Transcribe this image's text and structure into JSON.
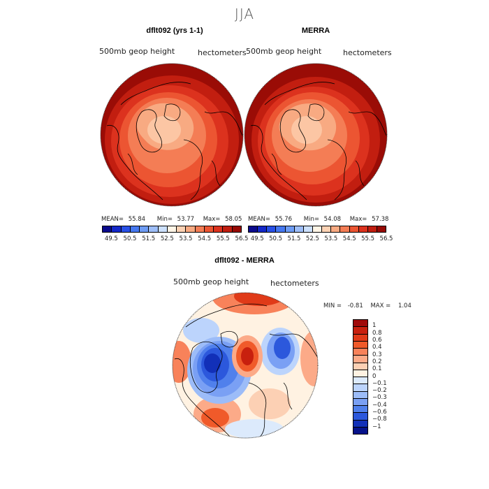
{
  "title": "JJA",
  "panels": [
    {
      "title": "dflt092 (yrs 1-1)",
      "var_label": "500mb geop height",
      "unit_label": "hectometers",
      "mean_label": "MEAN=",
      "mean": "55.84",
      "min_label": "Min=",
      "min": "53.77",
      "max_label": "Max=",
      "max": "58.05"
    },
    {
      "title": "MERRA",
      "var_label": "500mb geop height",
      "unit_label": "hectometers",
      "mean_label": "MEAN=",
      "mean": "55.76",
      "min_label": "Min=",
      "min": "54.08",
      "max_label": "Max=",
      "max": "57.38"
    }
  ],
  "abs_colorbar": {
    "colors": [
      "#0a0a8c",
      "#1428c8",
      "#2850e6",
      "#4678f0",
      "#6e9cf4",
      "#9ebef8",
      "#cce0fc",
      "#fff5e6",
      "#fcd2b4",
      "#f8aa82",
      "#f47d55",
      "#ec5532",
      "#dc321e",
      "#c01e10",
      "#960a05"
    ],
    "tick_labels": [
      "49.5",
      "50.5",
      "51.5",
      "52.5",
      "53.5",
      "54.5",
      "55.5",
      "56.5"
    ]
  },
  "diff_panel": {
    "title": "dflt092 - MERRA",
    "var_label": "500mb geop height",
    "unit_label": "hectometers",
    "min_label": "MIN =",
    "min": "-0.81",
    "max_label": "MAX =",
    "max": "1.04"
  },
  "diff_colorbar": {
    "colors_top_to_bottom": [
      "#a00a0a",
      "#c8200e",
      "#e03a18",
      "#f05a2a",
      "#f8825a",
      "#fcaa88",
      "#fcd0b4",
      "#fff2e2",
      "#dceafc",
      "#bcd4fc",
      "#9cbcf8",
      "#7aa0f4",
      "#5080ec",
      "#2c58dc",
      "#1230b8",
      "#06128a"
    ],
    "tick_labels": [
      "1",
      "0.8",
      "0.6",
      "0.4",
      "0.3",
      "0.2",
      "0.1",
      "0",
      "−0.1",
      "−0.2",
      "−0.3",
      "−0.4",
      "−0.6",
      "−0.8",
      "−1"
    ]
  },
  "map_projection": "north-polar-stereographic",
  "map_features": [
    "coastline-outlines"
  ]
}
